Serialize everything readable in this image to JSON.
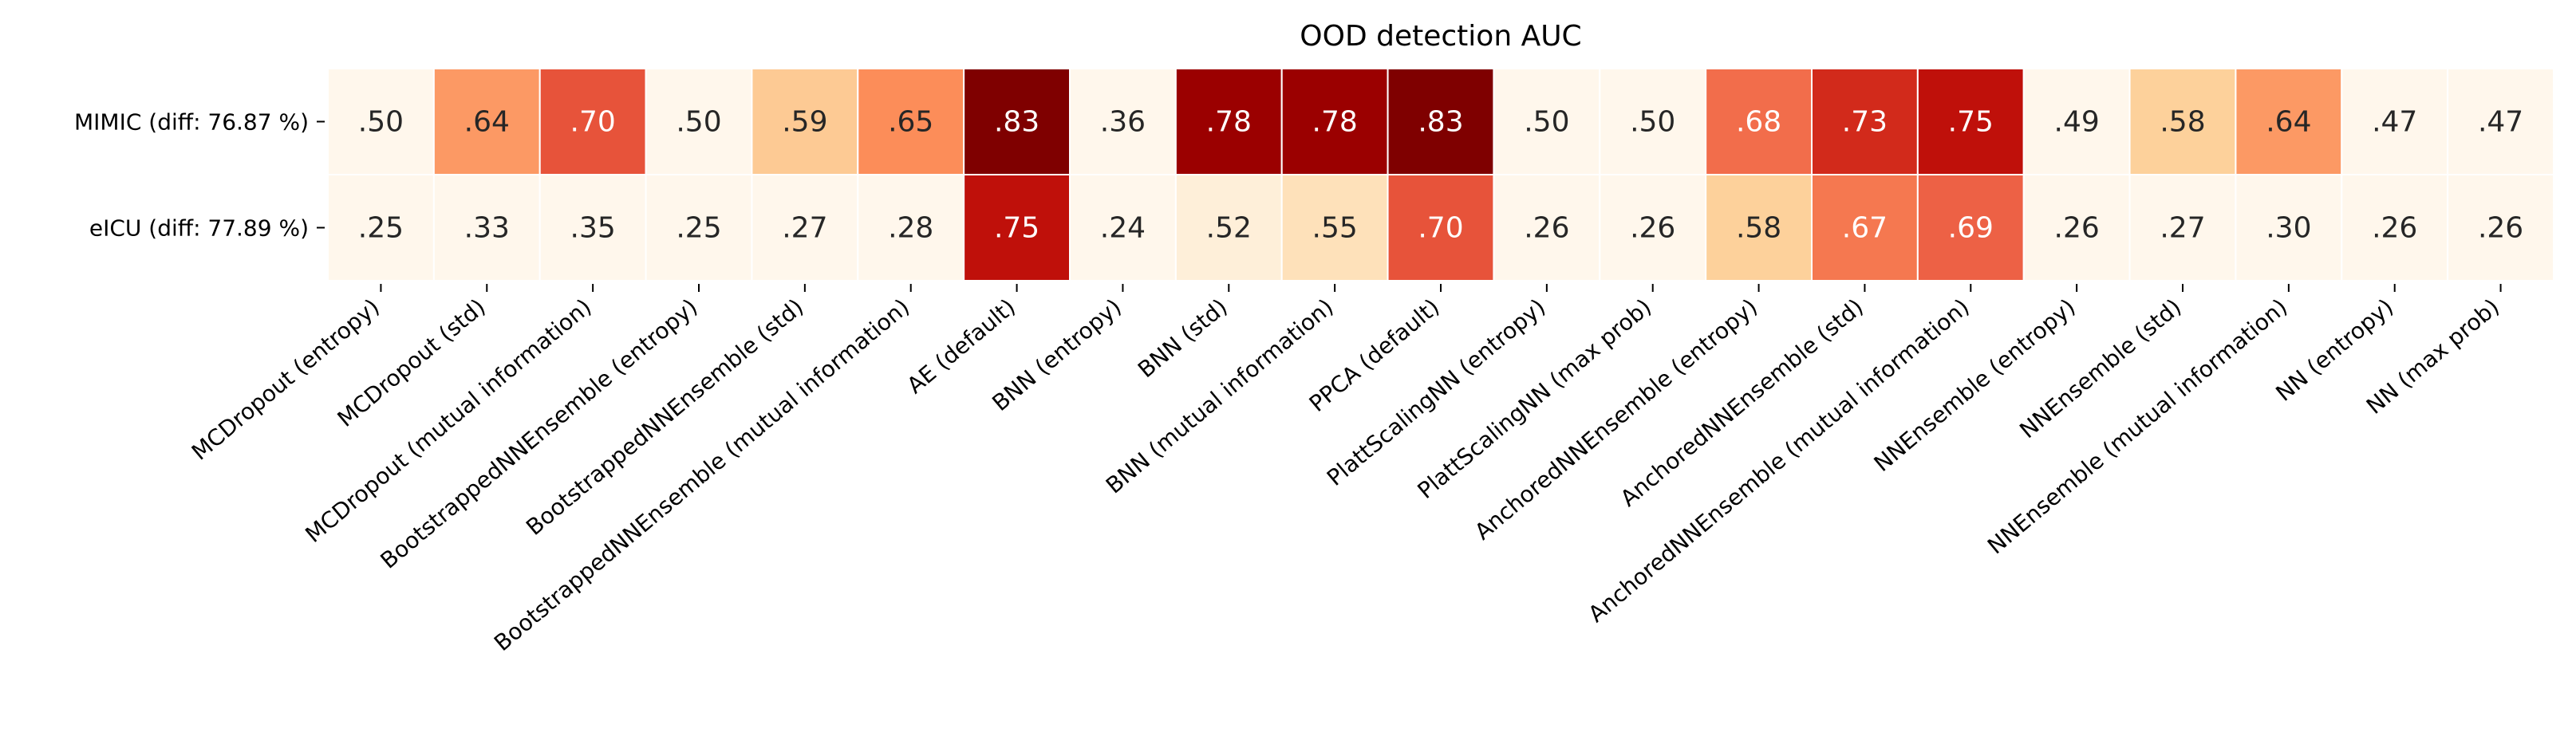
{
  "chart_data": {
    "type": "heatmap",
    "title": "OOD detection AUC",
    "rows": [
      "MIMIC (diff: 76.87 %)",
      "eICU (diff: 77.89 %)"
    ],
    "columns": [
      "MCDropout (entropy)",
      "MCDropout (std)",
      "MCDropout (mutual information)",
      "BootstrappedNNEnsemble (entropy)",
      "BootstrappedNNEnsemble (std)",
      "BootstrappedNNEnsemble (mutual information)",
      "AE (default)",
      "BNN (entropy)",
      "BNN (std)",
      "BNN (mutual information)",
      "PPCA (default)",
      "PlattScalingNN (entropy)",
      "PlattScalingNN (max prob)",
      "AnchoredNNEnsemble (entropy)",
      "AnchoredNNEnsemble (std)",
      "AnchoredNNEnsemble (mutual information)",
      "NNEnsemble (entropy)",
      "NNEnsemble (std)",
      "NNEnsemble (mutual information)",
      "NN (entropy)",
      "NN (max prob)"
    ],
    "values": [
      [
        0.5,
        0.64,
        0.7,
        0.5,
        0.59,
        0.65,
        0.83,
        0.36,
        0.78,
        0.78,
        0.83,
        0.5,
        0.5,
        0.68,
        0.73,
        0.75,
        0.49,
        0.58,
        0.64,
        0.47,
        0.47
      ],
      [
        0.25,
        0.33,
        0.35,
        0.25,
        0.27,
        0.28,
        0.75,
        0.24,
        0.52,
        0.55,
        0.7,
        0.26,
        0.26,
        0.58,
        0.67,
        0.69,
        0.26,
        0.27,
        0.3,
        0.26,
        0.26
      ]
    ],
    "cell_labels": [
      [
        ".50",
        ".64",
        ".70",
        ".50",
        ".59",
        ".65",
        ".83",
        ".36",
        ".78",
        ".78",
        ".83",
        ".50",
        ".50",
        ".68",
        ".73",
        ".75",
        ".49",
        ".58",
        ".64",
        ".47",
        ".47"
      ],
      [
        ".25",
        ".33",
        ".35",
        ".25",
        ".27",
        ".28",
        ".75",
        ".24",
        ".52",
        ".55",
        ".70",
        ".26",
        ".26",
        ".58",
        ".67",
        ".69",
        ".26",
        ".27",
        ".30",
        ".26",
        ".26"
      ]
    ],
    "colormap": "OrRd",
    "vmin": 0.5,
    "vmax": 0.8,
    "colorbar": false
  }
}
